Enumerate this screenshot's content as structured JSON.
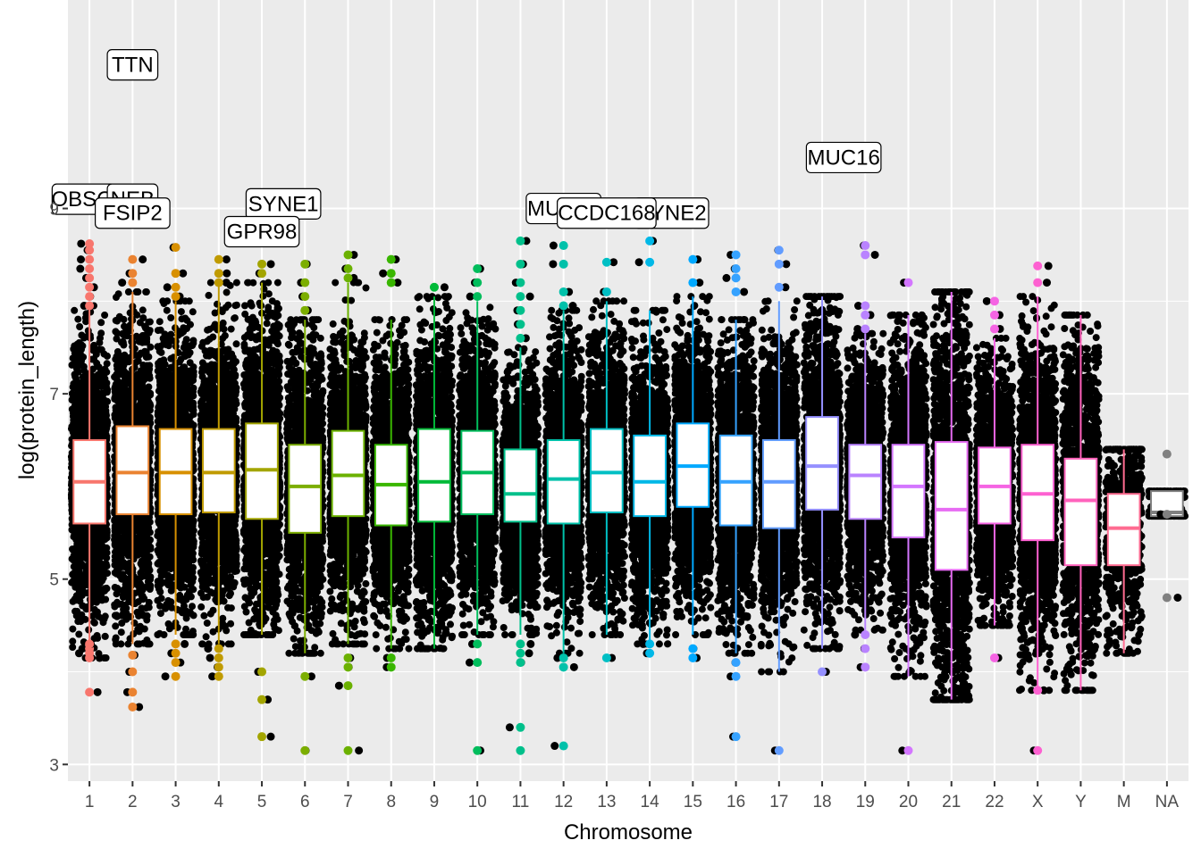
{
  "chart_data": {
    "type": "boxplot",
    "xlabel": "Chromosome",
    "ylabel": "log(protein_length)",
    "ylim": [
      2.82,
      11.25
    ],
    "yticks": [
      3,
      5,
      7,
      9
    ],
    "grid": true,
    "categories": [
      {
        "name": "1",
        "color": "#F8766D",
        "q1": 5.6,
        "median": 6.05,
        "q3": 6.5,
        "whisker_low": 4.15,
        "whisker_high": 7.95,
        "spread": 4.15,
        "outliers": [
          3.78,
          4.15,
          4.2,
          4.25,
          4.3,
          7.95,
          8.05,
          8.15,
          8.25,
          8.35,
          8.45,
          8.55,
          8.62
        ]
      },
      {
        "name": "2",
        "color": "#EA8331",
        "q1": 5.7,
        "median": 6.15,
        "q3": 6.65,
        "whisker_low": 4.3,
        "whisker_high": 8.1,
        "spread": 4.3,
        "outliers": [
          3.62,
          3.78,
          4.0,
          4.18,
          8.2,
          8.3,
          8.45
        ]
      },
      {
        "name": "3",
        "color": "#D89000",
        "q1": 5.7,
        "median": 6.15,
        "q3": 6.62,
        "whisker_low": 4.4,
        "whisker_high": 8.0,
        "spread": 4.2,
        "outliers": [
          3.95,
          4.1,
          4.2,
          4.3,
          8.05,
          8.15,
          8.3,
          8.58
        ]
      },
      {
        "name": "4",
        "color": "#C09B00",
        "q1": 5.72,
        "median": 6.15,
        "q3": 6.62,
        "whisker_low": 4.3,
        "whisker_high": 8.2,
        "spread": 4.3,
        "outliers": [
          3.95,
          4.05,
          4.15,
          4.25,
          8.2,
          8.3,
          8.45
        ]
      },
      {
        "name": "5",
        "color": "#A3A500",
        "q1": 5.65,
        "median": 6.18,
        "q3": 6.68,
        "whisker_low": 4.4,
        "whisker_high": 8.2,
        "spread": 4.4,
        "outliers": [
          3.3,
          3.7,
          4.0,
          8.3,
          8.4
        ]
      },
      {
        "name": "6",
        "color": "#7CAE00",
        "q1": 5.5,
        "median": 6.0,
        "q3": 6.45,
        "whisker_low": 4.2,
        "whisker_high": 7.8,
        "spread": 4.2,
        "outliers": [
          3.15,
          3.95,
          7.9,
          8.05,
          8.2,
          8.4
        ]
      },
      {
        "name": "7",
        "color": "#6BB100",
        "q1": 5.68,
        "median": 6.12,
        "q3": 6.6,
        "whisker_low": 4.3,
        "whisker_high": 8.2,
        "spread": 4.2,
        "outliers": [
          3.15,
          3.85,
          4.05,
          4.15,
          8.25,
          8.35,
          8.5
        ]
      },
      {
        "name": "8",
        "color": "#39B600",
        "q1": 5.58,
        "median": 6.02,
        "q3": 6.45,
        "whisker_low": 4.25,
        "whisker_high": 7.8,
        "spread": 4.2,
        "outliers": [
          4.05,
          4.15,
          8.2,
          8.3,
          8.45
        ]
      },
      {
        "name": "9",
        "color": "#00BA38",
        "q1": 5.62,
        "median": 6.05,
        "q3": 6.62,
        "whisker_low": 4.25,
        "whisker_high": 8.05,
        "spread": 4.3,
        "outliers": [
          8.15
        ]
      },
      {
        "name": "10",
        "color": "#00BD5C",
        "q1": 5.7,
        "median": 6.15,
        "q3": 6.6,
        "whisker_low": 4.4,
        "whisker_high": 8.0,
        "spread": 4.3,
        "outliers": [
          3.15,
          4.1,
          4.3,
          8.05,
          8.2,
          8.35
        ]
      },
      {
        "name": "11",
        "color": "#00C08B",
        "q1": 5.62,
        "median": 5.92,
        "q3": 6.4,
        "whisker_low": 4.4,
        "whisker_high": 7.5,
        "spread": 4.1,
        "outliers": [
          3.15,
          3.4,
          4.1,
          4.2,
          4.3,
          7.6,
          7.75,
          7.9,
          8.05,
          8.2,
          8.4,
          8.65
        ]
      },
      {
        "name": "12",
        "color": "#00C1AA",
        "q1": 5.6,
        "median": 6.08,
        "q3": 6.5,
        "whisker_low": 4.2,
        "whisker_high": 7.9,
        "spread": 4.3,
        "outliers": [
          3.2,
          4.05,
          4.15,
          7.95,
          8.1,
          8.4,
          8.6
        ]
      },
      {
        "name": "13",
        "color": "#00BFC4",
        "q1": 5.72,
        "median": 6.15,
        "q3": 6.62,
        "whisker_low": 4.4,
        "whisker_high": 8.0,
        "spread": 4.2,
        "outliers": [
          4.15,
          8.1,
          8.42
        ]
      },
      {
        "name": "14",
        "color": "#00B8E7",
        "q1": 5.68,
        "median": 6.05,
        "q3": 6.55,
        "whisker_low": 4.3,
        "whisker_high": 7.9,
        "spread": 4.3,
        "outliers": [
          4.2,
          4.3,
          8.42,
          8.65
        ]
      },
      {
        "name": "15",
        "color": "#00A9FF",
        "q1": 5.78,
        "median": 6.22,
        "q3": 6.68,
        "whisker_low": 4.4,
        "whisker_high": 8.05,
        "spread": 4.3,
        "outliers": [
          4.15,
          4.25,
          8.2,
          8.45
        ]
      },
      {
        "name": "16",
        "color": "#35A2FF",
        "q1": 5.58,
        "median": 6.05,
        "q3": 6.55,
        "whisker_low": 4.2,
        "whisker_high": 7.8,
        "spread": 4.2,
        "outliers": [
          3.3,
          3.95,
          4.1,
          8.1,
          8.25,
          8.35,
          8.5
        ]
      },
      {
        "name": "17",
        "color": "#619CFF",
        "q1": 5.55,
        "median": 6.05,
        "q3": 6.5,
        "whisker_low": 4.0,
        "whisker_high": 8.0,
        "spread": 4.4,
        "outliers": [
          3.15,
          8.15,
          8.4,
          8.55
        ]
      },
      {
        "name": "18",
        "color": "#9590FF",
        "q1": 5.75,
        "median": 6.22,
        "q3": 6.75,
        "whisker_low": 4.25,
        "whisker_high": 8.05,
        "spread": 4.3,
        "outliers": [
          4.0
        ]
      },
      {
        "name": "19",
        "color": "#B983FF",
        "q1": 5.65,
        "median": 6.12,
        "q3": 6.45,
        "whisker_low": 4.45,
        "whisker_high": 7.65,
        "spread": 4.4,
        "outliers": [
          4.05,
          4.25,
          4.4,
          7.7,
          7.85,
          7.95,
          8.5,
          8.6
        ]
      },
      {
        "name": "20",
        "color": "#D376FF",
        "q1": 5.45,
        "median": 6.0,
        "q3": 6.45,
        "whisker_low": 3.95,
        "whisker_high": 7.85,
        "spread": 4.2,
        "outliers": [
          3.15,
          8.2
        ]
      },
      {
        "name": "21",
        "color": "#E76BF3",
        "q1": 5.1,
        "median": 5.75,
        "q3": 6.48,
        "whisker_low": 3.7,
        "whisker_high": 8.1,
        "spread": 4.0,
        "outliers": []
      },
      {
        "name": "22",
        "color": "#F564E3",
        "q1": 5.6,
        "median": 6.0,
        "q3": 6.42,
        "whisker_low": 4.5,
        "whisker_high": 7.6,
        "spread": 4.0,
        "outliers": [
          4.15,
          7.7,
          7.85,
          8.0
        ]
      },
      {
        "name": "X",
        "color": "#FD61D1",
        "q1": 5.42,
        "median": 5.92,
        "q3": 6.45,
        "whisker_low": 3.8,
        "whisker_high": 8.05,
        "spread": 4.4,
        "outliers": [
          3.15,
          3.8,
          8.2,
          8.38
        ]
      },
      {
        "name": "Y",
        "color": "#FF62BC",
        "q1": 5.15,
        "median": 5.85,
        "q3": 6.3,
        "whisker_low": 3.8,
        "whisker_high": 7.85,
        "spread": 3.4,
        "outliers": []
      },
      {
        "name": "M",
        "color": "#FF6C91",
        "q1": 5.15,
        "median": 5.55,
        "q3": 5.92,
        "whisker_low": 4.2,
        "whisker_high": 6.4,
        "spread": 1.8,
        "outliers": []
      },
      {
        "name": "NA",
        "color": "#808080",
        "q1": 5.68,
        "median": 5.72,
        "q3": 5.95,
        "whisker_low": 5.68,
        "whisker_high": 5.95,
        "spread": 0.6,
        "outliers": [
          4.8,
          5.7,
          6.35
        ]
      }
    ],
    "annotations": [
      {
        "label": "TTN",
        "x": "2",
        "y": 10.55
      },
      {
        "label": "MUC16",
        "x": "18.5",
        "y": 9.55
      },
      {
        "label": "OBSCN",
        "x": "1",
        "y": 9.1
      },
      {
        "label": "NEB",
        "x": "2",
        "y": 9.1
      },
      {
        "label": "FSIP2",
        "x": "2",
        "y": 8.95
      },
      {
        "label": "SYNE1",
        "x": "5.5",
        "y": 9.05
      },
      {
        "label": "GPR98",
        "x": "5",
        "y": 8.75
      },
      {
        "label": "MUC19",
        "x": "12",
        "y": 9.0
      },
      {
        "label": "SYNE2",
        "x": "14.5",
        "y": 8.95
      },
      {
        "label": "CCDC168",
        "x": "13",
        "y": 8.95
      }
    ]
  }
}
